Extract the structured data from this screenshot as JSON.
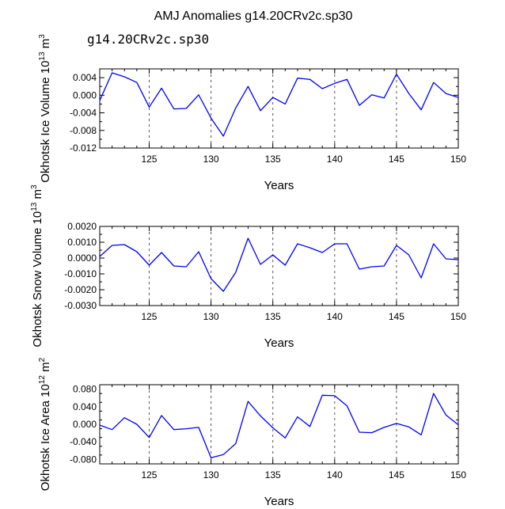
{
  "figure": {
    "title": "AMJ Anomalies g14.20CRv2c.sp30",
    "subtitle": "g14.20CRv2c.sp30",
    "subtitle_color": "#3b3bd6",
    "series_color": "#0000ff"
  },
  "chart_data": [
    {
      "type": "line",
      "ylabel": "Okhotsk Ice Volume 10",
      "ylabel_exp": "13",
      "ylabel_unit": "m",
      "ylabel_unit_exp": "3",
      "xlabel": "Years",
      "xlim": [
        121,
        150
      ],
      "ylim": [
        -0.012,
        0.006
      ],
      "xticks": [
        125,
        130,
        135,
        140,
        145,
        150
      ],
      "xtick_labels": [
        "125",
        "130",
        "135",
        "140",
        "145",
        "150"
      ],
      "yticks": [
        -0.012,
        -0.008,
        -0.004,
        0.0,
        0.004
      ],
      "ytick_labels": [
        "-0.012",
        "-0.008",
        "-0.004",
        "0.000",
        "0.004"
      ],
      "x": [
        121,
        122,
        123,
        124,
        125,
        126,
        127,
        128,
        129,
        130,
        131,
        132,
        133,
        134,
        135,
        136,
        137,
        138,
        139,
        140,
        141,
        142,
        143,
        144,
        145,
        146,
        147,
        148,
        149,
        150
      ],
      "values": [
        -0.0012,
        0.0051,
        0.0042,
        0.0029,
        -0.0027,
        0.0016,
        -0.0031,
        -0.003,
        0.0001,
        -0.0052,
        -0.0093,
        -0.0029,
        0.002,
        -0.0035,
        -0.0005,
        -0.002,
        0.0039,
        0.0036,
        0.0015,
        0.0027,
        0.0036,
        -0.0023,
        0.0001,
        -0.0006,
        0.0048,
        0.0004,
        -0.0033,
        0.0029,
        0.0004,
        -0.0005
      ]
    },
    {
      "type": "line",
      "ylabel": "Okhotsk Snow Volume 10",
      "ylabel_exp": "13",
      "ylabel_unit": "m",
      "ylabel_unit_exp": "3",
      "xlabel": "Years",
      "xlim": [
        121,
        150
      ],
      "ylim": [
        -0.003,
        0.002
      ],
      "xticks": [
        125,
        130,
        135,
        140,
        145,
        150
      ],
      "xtick_labels": [
        "125",
        "130",
        "135",
        "140",
        "145",
        "150"
      ],
      "yticks": [
        -0.003,
        -0.002,
        -0.001,
        0.0,
        0.001,
        0.002
      ],
      "ytick_labels": [
        "-0.0030",
        "-0.0020",
        "-0.0010",
        "0.0000",
        "0.0010",
        "0.0020"
      ],
      "x": [
        121,
        122,
        123,
        124,
        125,
        126,
        127,
        128,
        129,
        130,
        131,
        132,
        133,
        134,
        135,
        136,
        137,
        138,
        139,
        140,
        141,
        142,
        143,
        144,
        145,
        146,
        147,
        148,
        149,
        150
      ],
      "values": [
        0.0001,
        0.0008,
        0.00085,
        0.0004,
        -0.00045,
        0.00035,
        -0.0005,
        -0.00055,
        0.0004,
        -0.0013,
        -0.0021,
        -0.0009,
        0.00125,
        -0.0004,
        0.0002,
        -0.00045,
        0.0009,
        0.00065,
        0.00035,
        0.0009,
        0.0009,
        -0.0007,
        -0.00055,
        -0.0005,
        0.0008,
        0.0002,
        -0.00125,
        0.0009,
        -5e-05,
        -0.0001
      ]
    },
    {
      "type": "line",
      "ylabel": "Okhotsk Ice Area 10",
      "ylabel_exp": "12",
      "ylabel_unit": "m",
      "ylabel_unit_exp": "2",
      "xlabel": "Years",
      "xlim": [
        121,
        150
      ],
      "ylim": [
        -0.09,
        0.09
      ],
      "xticks": [
        125,
        130,
        135,
        140,
        145,
        150
      ],
      "xtick_labels": [
        "125",
        "130",
        "135",
        "140",
        "145",
        "150"
      ],
      "yticks": [
        -0.08,
        -0.04,
        0.0,
        0.04,
        0.08
      ],
      "ytick_labels": [
        "-0.080",
        "-0.040",
        "0.000",
        "0.040",
        "0.080"
      ],
      "x": [
        121,
        122,
        123,
        124,
        125,
        126,
        127,
        128,
        129,
        130,
        131,
        132,
        133,
        134,
        135,
        136,
        137,
        138,
        139,
        140,
        141,
        142,
        143,
        144,
        145,
        146,
        147,
        148,
        149,
        150
      ],
      "values": [
        -0.002,
        -0.012,
        0.015,
        0.0,
        -0.03,
        0.02,
        -0.012,
        -0.01,
        -0.007,
        -0.076,
        -0.069,
        -0.044,
        0.052,
        0.019,
        -0.008,
        -0.031,
        0.017,
        -0.005,
        0.066,
        0.065,
        0.042,
        -0.018,
        -0.019,
        -0.007,
        0.002,
        -0.006,
        -0.024,
        0.07,
        0.021,
        -0.001
      ]
    }
  ]
}
